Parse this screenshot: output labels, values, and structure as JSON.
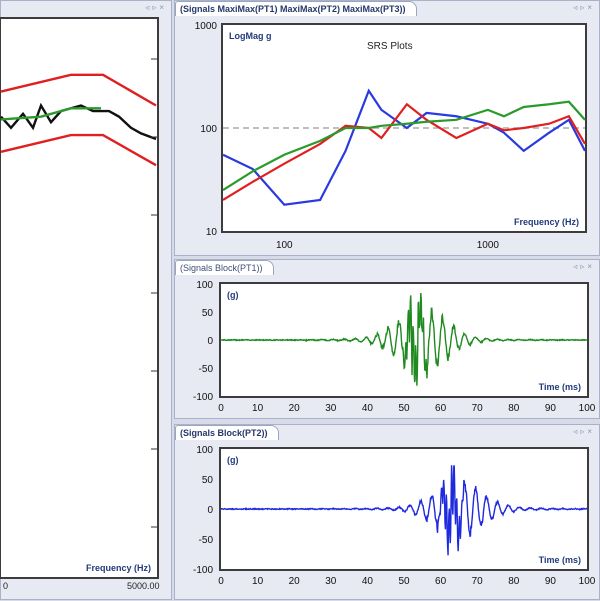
{
  "left_pane": {
    "xlabel": "Frequency (Hz)",
    "xtick_left": "0",
    "xtick_right": "5000.00",
    "chart_data": {
      "type": "line",
      "series": [
        {
          "color": "#e02020",
          "points": [
            [
              0,
              0.13
            ],
            [
              70,
              0.1
            ],
            [
              102,
              0.1
            ],
            [
              155,
              0.155
            ]
          ]
        },
        {
          "color": "#111111",
          "points": [
            [
              0,
              0.175
            ],
            [
              10,
              0.195
            ],
            [
              22,
              0.17
            ],
            [
              32,
              0.195
            ],
            [
              40,
              0.155
            ],
            [
              50,
              0.185
            ],
            [
              60,
              0.165
            ],
            [
              70,
              0.16
            ],
            [
              80,
              0.155
            ],
            [
              92,
              0.165
            ],
            [
              108,
              0.165
            ],
            [
              118,
              0.175
            ],
            [
              130,
              0.195
            ],
            [
              140,
              0.205
            ],
            [
              155,
              0.215
            ]
          ]
        },
        {
          "color": "#2a9a2a",
          "points": [
            [
              0,
              0.18
            ],
            [
              40,
              0.175
            ],
            [
              70,
              0.16
            ],
            [
              100,
              0.16
            ]
          ]
        },
        {
          "color": "#e02020",
          "points": [
            [
              0,
              0.238
            ],
            [
              70,
              0.208
            ],
            [
              102,
              0.208
            ],
            [
              155,
              0.262
            ]
          ]
        }
      ]
    }
  },
  "srs_pane": {
    "tab": "(Signals MaxiMax(PT1) MaxiMax(PT2) MaxiMax(PT3))",
    "title": "SRS Plots",
    "ylabel": "LogMag g",
    "xlabel": "Frequency (Hz)",
    "yticks": [
      "1000",
      "100",
      "10"
    ],
    "xticks": [
      "100",
      "1000"
    ],
    "chart_data": {
      "type": "line",
      "xscale": "log",
      "yscale": "log",
      "xlim": [
        50,
        3000
      ],
      "ylim": [
        10,
        1000
      ],
      "reference_line": 100,
      "series": [
        {
          "color": "#2a3adf",
          "x": [
            50,
            70,
            100,
            150,
            200,
            260,
            300,
            400,
            500,
            700,
            1000,
            1200,
            1500,
            2000,
            2500,
            3000
          ],
          "y": [
            55,
            40,
            18,
            20,
            60,
            230,
            150,
            100,
            140,
            130,
            110,
            90,
            60,
            90,
            120,
            60
          ]
        },
        {
          "color": "#e02020",
          "x": [
            50,
            70,
            100,
            150,
            200,
            260,
            300,
            400,
            500,
            700,
            1000,
            1200,
            1500,
            2000,
            2500,
            3000
          ],
          "y": [
            20,
            30,
            45,
            70,
            105,
            100,
            80,
            170,
            120,
            80,
            110,
            95,
            100,
            110,
            130,
            70
          ]
        },
        {
          "color": "#2a9a2a",
          "x": [
            50,
            70,
            100,
            150,
            200,
            260,
            300,
            400,
            500,
            700,
            1000,
            1200,
            1500,
            2000,
            2500,
            3000
          ],
          "y": [
            25,
            38,
            55,
            75,
            100,
            100,
            105,
            110,
            115,
            120,
            150,
            130,
            160,
            170,
            180,
            120
          ]
        }
      ]
    }
  },
  "block1_pane": {
    "tab": "(Signals Block(PT1))",
    "ylabel": "(g)",
    "xlabel": "Time (ms)",
    "yticks": [
      "100",
      "50",
      "0",
      "-50",
      "-100"
    ],
    "xticks": [
      "0",
      "10",
      "20",
      "30",
      "40",
      "50",
      "60",
      "70",
      "80",
      "90",
      "100"
    ],
    "chart_data": {
      "type": "line",
      "color": "#1f8a1f",
      "xlim": [
        0,
        100
      ],
      "ylim": [
        -100,
        100
      ],
      "burst_center": 55,
      "burst_peak": 65
    }
  },
  "block2_pane": {
    "tab": "(Signals Block(PT2))",
    "ylabel": "(g)",
    "xlabel": "Time (ms)",
    "yticks": [
      "100",
      "50",
      "0",
      "-50",
      "-100"
    ],
    "xticks": [
      "0",
      "10",
      "20",
      "30",
      "40",
      "50",
      "60",
      "70",
      "80",
      "90",
      "100"
    ],
    "chart_data": {
      "type": "line",
      "color": "#1f2adf",
      "xlim": [
        0,
        100
      ],
      "ylim": [
        -100,
        100
      ],
      "burst_center": 65,
      "burst_peak": 50
    }
  },
  "controls": {
    "prev": "◃",
    "next": "▹",
    "close": "×"
  }
}
